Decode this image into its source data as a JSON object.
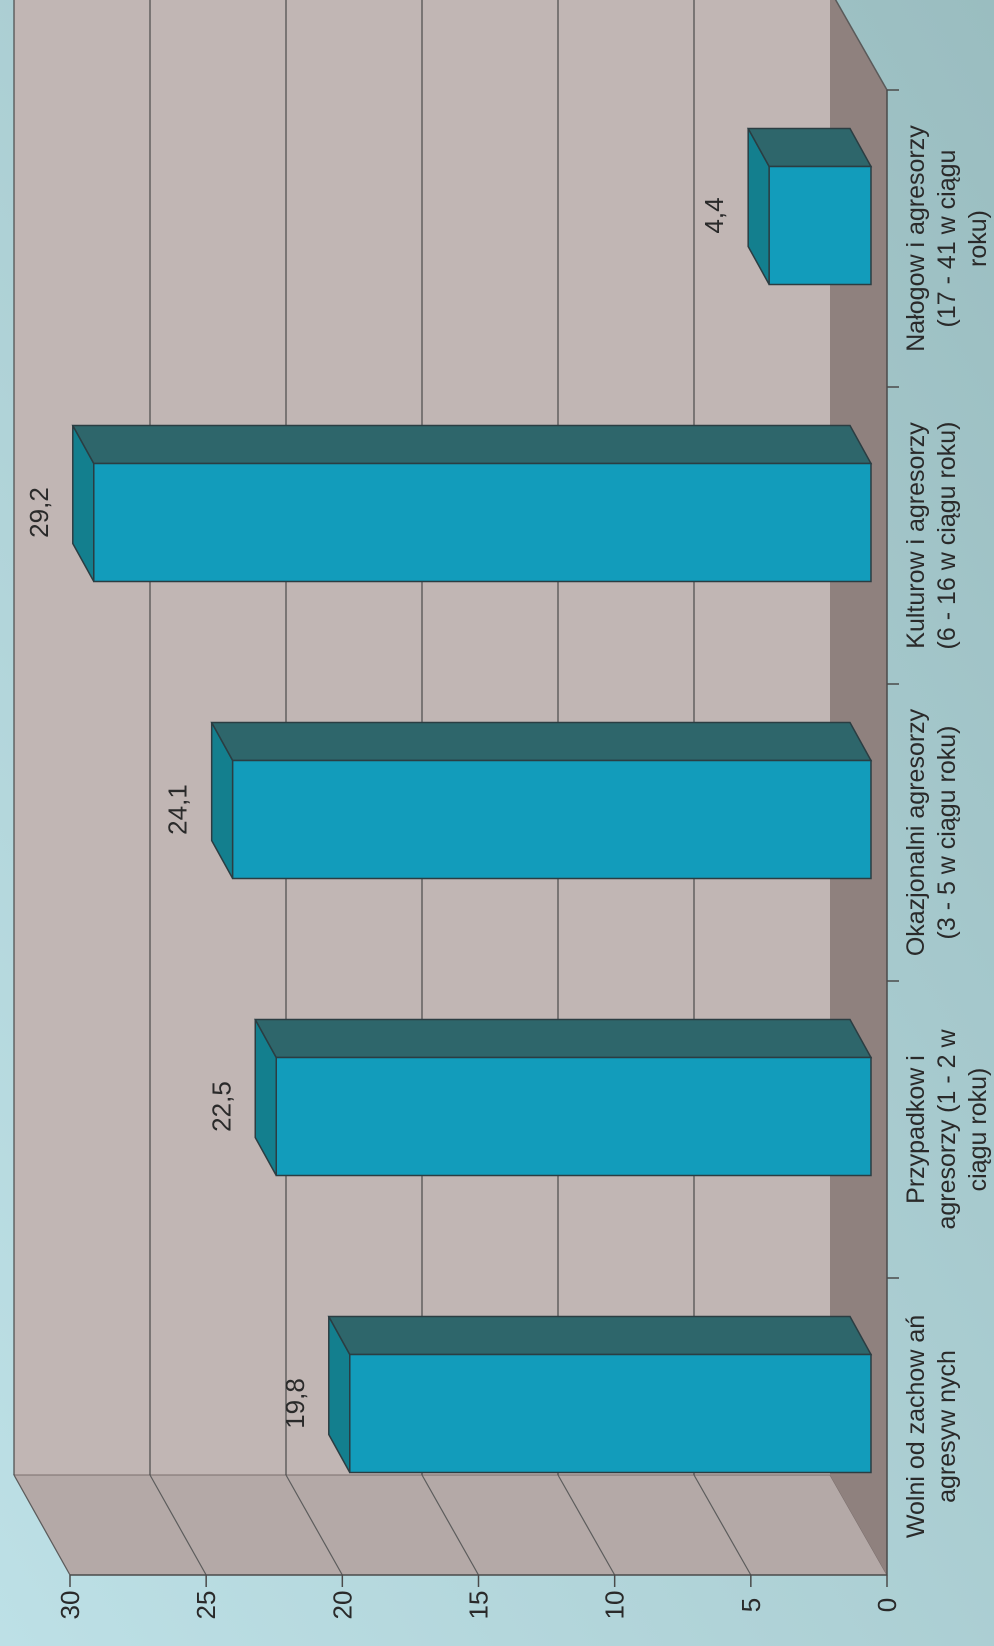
{
  "chart_data": {
    "type": "bar",
    "orientation": "rotated-90-cw",
    "categories": [
      [
        "Wolni od zachow ań",
        "agresyw nych"
      ],
      [
        "Przypadkow i",
        "agresorzy (1 - 2  w",
        "ciągu roku)"
      ],
      [
        "Okazjonalni agresorzy",
        "(3 - 5  w  ciągu roku)"
      ],
      [
        "Kulturow i agresorzy",
        "(6 - 16  w  ciągu roku)"
      ],
      [
        "Nałogow i agresorzy",
        "(17 - 41  w  ciągu",
        "roku)"
      ]
    ],
    "values": [
      19.8,
      22.5,
      24.1,
      29.2,
      4.4
    ],
    "value_labels": [
      "19,8",
      "22,5",
      "24,1",
      "29,2",
      "4,4"
    ],
    "ylim": [
      0,
      30
    ],
    "yticks": [
      "0",
      "5",
      "10",
      "15",
      "20",
      "25",
      "30"
    ],
    "grid": true,
    "three_d": true,
    "colors": {
      "background_top": "#9fc1c4",
      "background_bottom": "#b9dde2",
      "back_wall": "#c1b6b4",
      "floor": "#8f817e",
      "side_wall": "#b4a9a7",
      "bar_front": "#129cbb",
      "bar_top": "#2e666b",
      "bar_side": "#137f8e",
      "gridline": "#4a4a4a"
    }
  }
}
